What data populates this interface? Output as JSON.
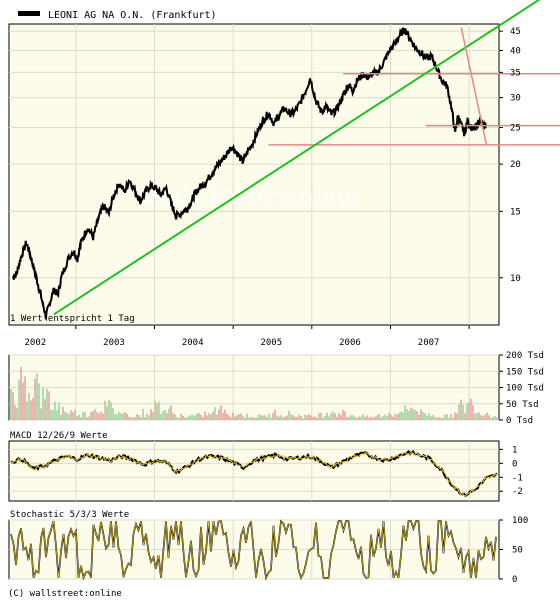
{
  "colors": {
    "background": "#ffffff",
    "panel_bg": "#fdfbea",
    "grid": "#dcdccc",
    "border": "#000000",
    "price": "#000000",
    "trend": "#22c022",
    "levels": "#e08888",
    "volume_up": "#9ed69e",
    "volume_down": "#e8a4a4",
    "macd": "#e0c020",
    "stochastic": "#e0c020"
  },
  "footer": {
    "copyright": "(C) wallstreet:online"
  },
  "chart_data": [
    {
      "type": "line",
      "title": "LEONI AG NA O.N. (Frankfurt)",
      "note": "1 Wert entspricht 1 Tag",
      "watermark": "wallstreet:online",
      "x_tick_labels": [
        "2002",
        "2003",
        "2004",
        "2005",
        "2006",
        "2007"
      ],
      "y_scale": "log",
      "y_ticks": [
        10,
        15,
        20,
        25,
        30,
        35,
        40,
        45
      ],
      "ylim": [
        7.5,
        47
      ],
      "grid": true,
      "legend": "top-left",
      "series": [
        {
          "name": "LEONI AG NA O.N. (Frankfurt)",
          "x": [
            2001.7,
            2001.75,
            2001.8,
            2001.87,
            2001.92,
            2001.97,
            2002.02,
            2002.07,
            2002.12,
            2002.17,
            2002.22,
            2002.27,
            2002.32,
            2002.4,
            2002.47,
            2002.52,
            2002.57,
            2002.65,
            2002.72,
            2002.78,
            2002.85,
            2002.92,
            2002.98,
            2003.05,
            2003.12,
            2003.18,
            2003.25,
            2003.32,
            2003.38,
            2003.45,
            2003.52,
            2003.58,
            2003.65,
            2003.72,
            2003.78,
            2003.85,
            2003.92,
            2003.98,
            2004.02,
            2004.08,
            2004.15,
            2004.22,
            2004.28,
            2004.35,
            2004.42,
            2004.48,
            2004.55,
            2004.62,
            2004.68,
            2004.75,
            2004.82,
            2004.88,
            2004.95,
            2005.02,
            2005.08,
            2005.15,
            2005.22,
            2005.28,
            2005.35,
            2005.42,
            2005.48,
            2005.55,
            2005.62,
            2005.68,
            2005.75,
            2005.82,
            2005.88,
            2005.92,
            2005.97,
            2006.02,
            2006.08,
            2006.15,
            2006.22,
            2006.28,
            2006.35,
            2006.42,
            2006.48,
            2006.55,
            2006.62,
            2006.68,
            2006.75,
            2006.82,
            2006.88,
            2006.95,
            2007.02,
            2007.08,
            2007.15,
            2007.22,
            2007.28,
            2007.32,
            2007.36,
            2007.4,
            2007.44,
            2007.48,
            2007.52,
            2007.56,
            2007.6,
            2007.64,
            2007.68,
            2007.72
          ],
          "values": [
            10.0,
            10.3,
            11.3,
            12.4,
            11.5,
            10.5,
            9.6,
            8.7,
            7.9,
            8.6,
            9.3,
            9.0,
            10.1,
            11.2,
            11.8,
            11.2,
            12.5,
            13.6,
            12.8,
            14.2,
            15.5,
            14.8,
            16.5,
            17.8,
            16.9,
            18.2,
            17.0,
            16.0,
            16.8,
            17.6,
            17.2,
            16.6,
            17.3,
            15.5,
            14.6,
            14.9,
            15.3,
            16.1,
            16.8,
            17.4,
            17.9,
            18.8,
            19.6,
            20.4,
            21.3,
            22.3,
            21.4,
            20.3,
            21.5,
            22.8,
            24.6,
            26.1,
            27.3,
            25.6,
            26.8,
            28.1,
            27.2,
            27.5,
            29.0,
            31.2,
            33.8,
            29.5,
            27.6,
            28.4,
            27.1,
            28.0,
            29.8,
            31.0,
            32.5,
            31.3,
            33.4,
            34.6,
            34.0,
            34.8,
            35.2,
            37.4,
            39.8,
            41.5,
            44.0,
            45.5,
            43.0,
            40.6,
            39.7,
            38.1,
            38.6,
            36.2,
            33.5,
            32.1,
            27.9,
            24.2,
            26.8,
            25.4,
            24.1,
            26.0,
            25.2,
            24.6,
            25.4,
            26.3,
            25.1,
            25.6
          ]
        }
      ],
      "annotations": {
        "trendlines": [
          {
            "from": [
              2002.22,
              8.0
            ],
            "to": [
              2007.88,
              46.5
            ]
          },
          {
            "from": [
              2007.4,
              46.0
            ],
            "to": [
              2007.72,
              22.5
            ]
          }
        ],
        "horizontal_levels": [
          {
            "y": 34.7,
            "from_x": 2005.9
          },
          {
            "y": 25.3,
            "from_x": 2006.95
          },
          {
            "y": 22.5,
            "from_x": 2004.95
          }
        ]
      }
    },
    {
      "type": "bar",
      "title": "",
      "ylabel": "Tsd",
      "y_ticks": [
        0,
        50,
        100,
        150,
        200
      ],
      "y_tick_labels": [
        "0 Tsd",
        "50 Tsd",
        "100 Tsd",
        "150 Tsd",
        "200 Tsd"
      ],
      "ylim": [
        0,
        200
      ],
      "sample_values": [
        120,
        160,
        140,
        90,
        60,
        40,
        30,
        25,
        45,
        55,
        35,
        25,
        20,
        30,
        60,
        40,
        20,
        15,
        18,
        25,
        40,
        30,
        22,
        18,
        15,
        20,
        30,
        25,
        18,
        15,
        22,
        35,
        28,
        20,
        15,
        12,
        18,
        25,
        40,
        50,
        30,
        20,
        15,
        22,
        55,
        65,
        30,
        20
      ]
    },
    {
      "type": "line",
      "title": "MACD 12/26/9 Werte",
      "y_ticks": [
        1,
        0,
        -1,
        -2
      ],
      "ylim": [
        -2.7,
        1.6
      ],
      "sample_values": [
        0.1,
        0.3,
        -0.4,
        -0.2,
        0.2,
        0.5,
        0.3,
        0.6,
        0.4,
        0.2,
        0.5,
        0.3,
        -0.1,
        0.2,
        0.1,
        -0.6,
        -0.2,
        0.3,
        0.5,
        0.4,
        0.1,
        -0.3,
        0.2,
        0.4,
        0.6,
        0.3,
        0.4,
        0.5,
        0.2,
        -0.3,
        0.1,
        0.5,
        0.7,
        0.4,
        0.2,
        0.5,
        0.8,
        0.6,
        0.3,
        -0.5,
        -1.6,
        -2.3,
        -1.9,
        -1.1,
        -0.8
      ]
    },
    {
      "type": "line",
      "title": "Stochastic 5/3/3 Werte",
      "y_ticks": [
        0,
        50,
        100
      ],
      "ylim": [
        0,
        100
      ],
      "sample_values": [
        40,
        85,
        20,
        10,
        75,
        95,
        30,
        55,
        90,
        15,
        5,
        60,
        88,
        70,
        25,
        12,
        80,
        92,
        45,
        18,
        65,
        95,
        78,
        30,
        8,
        50,
        82,
        96,
        40,
        22,
        70,
        88,
        15,
        6,
        55,
        92,
        75,
        35,
        20,
        85,
        60,
        10,
        45,
        90,
        96,
        30,
        12,
        68,
        84,
        25,
        5,
        58,
        93,
        80,
        38,
        14,
        72,
        98,
        50,
        20,
        8,
        62,
        90,
        40
      ]
    }
  ]
}
